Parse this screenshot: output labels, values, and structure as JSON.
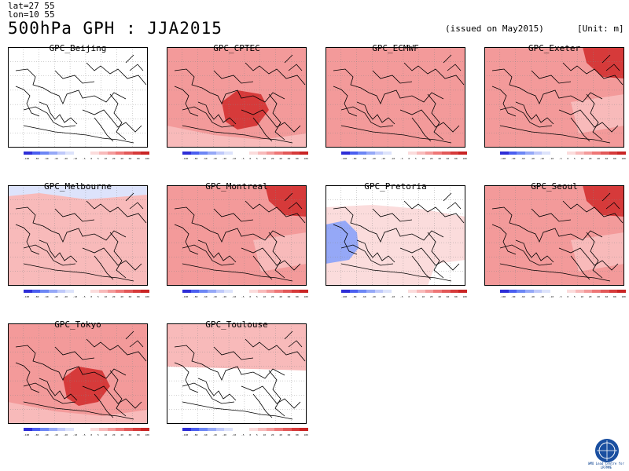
{
  "header": {
    "lat": "lat=27 55",
    "lon": "lon=10 55",
    "title": "500hPa GPH : JJA2015",
    "issued": "(issued on May2015)",
    "unit": "[Unit: m]"
  },
  "colors": {
    "scale": [
      "#2d2dd7",
      "#4a5ef0",
      "#6c86f5",
      "#95a8f7",
      "#bfc9fa",
      "#dde3fb",
      "#ffffff",
      "#ffffff",
      "#fbdcdc",
      "#f8baba",
      "#f39a9a",
      "#ee7777",
      "#e25858",
      "#d63a3a",
      "#c92424"
    ],
    "land_line": "#000000",
    "grid": "#888888"
  },
  "colorbar_labels": [
    "-100",
    "-80",
    "-60",
    "-40",
    "-20",
    "-10",
    "-5",
    "0",
    "5",
    "10",
    "20",
    "40",
    "60",
    "80",
    "100"
  ],
  "panels": [
    {
      "title": "GPC_Beijing",
      "fill_level": 0.05,
      "highlight": "none"
    },
    {
      "title": "GPC_CPTEC",
      "fill_level": 0.45,
      "highlight": "center-dark"
    },
    {
      "title": "GPC_ECMWF",
      "fill_level": 0.55,
      "highlight": "uniform"
    },
    {
      "title": "GPC_Exeter",
      "fill_level": 0.5,
      "highlight": "top-right-dark"
    },
    {
      "title": "GPC_Melbourne",
      "fill_level": 0.35,
      "highlight": "top-left-blue"
    },
    {
      "title": "GPC_Montreal",
      "fill_level": 0.55,
      "highlight": "top-right-dark"
    },
    {
      "title": "GPC_Pretoria",
      "fill_level": 0.1,
      "highlight": "left-blue"
    },
    {
      "title": "GPC_Seoul",
      "fill_level": 0.5,
      "highlight": "top-right-dark"
    },
    {
      "title": "GPC_Tokyo",
      "fill_level": 0.5,
      "highlight": "center-dark"
    },
    {
      "title": "GPC_Toulouse",
      "fill_level": 0.3,
      "highlight": "top-light"
    }
  ],
  "logo": {
    "text": "WMO Lead Centre for LRFMME"
  }
}
